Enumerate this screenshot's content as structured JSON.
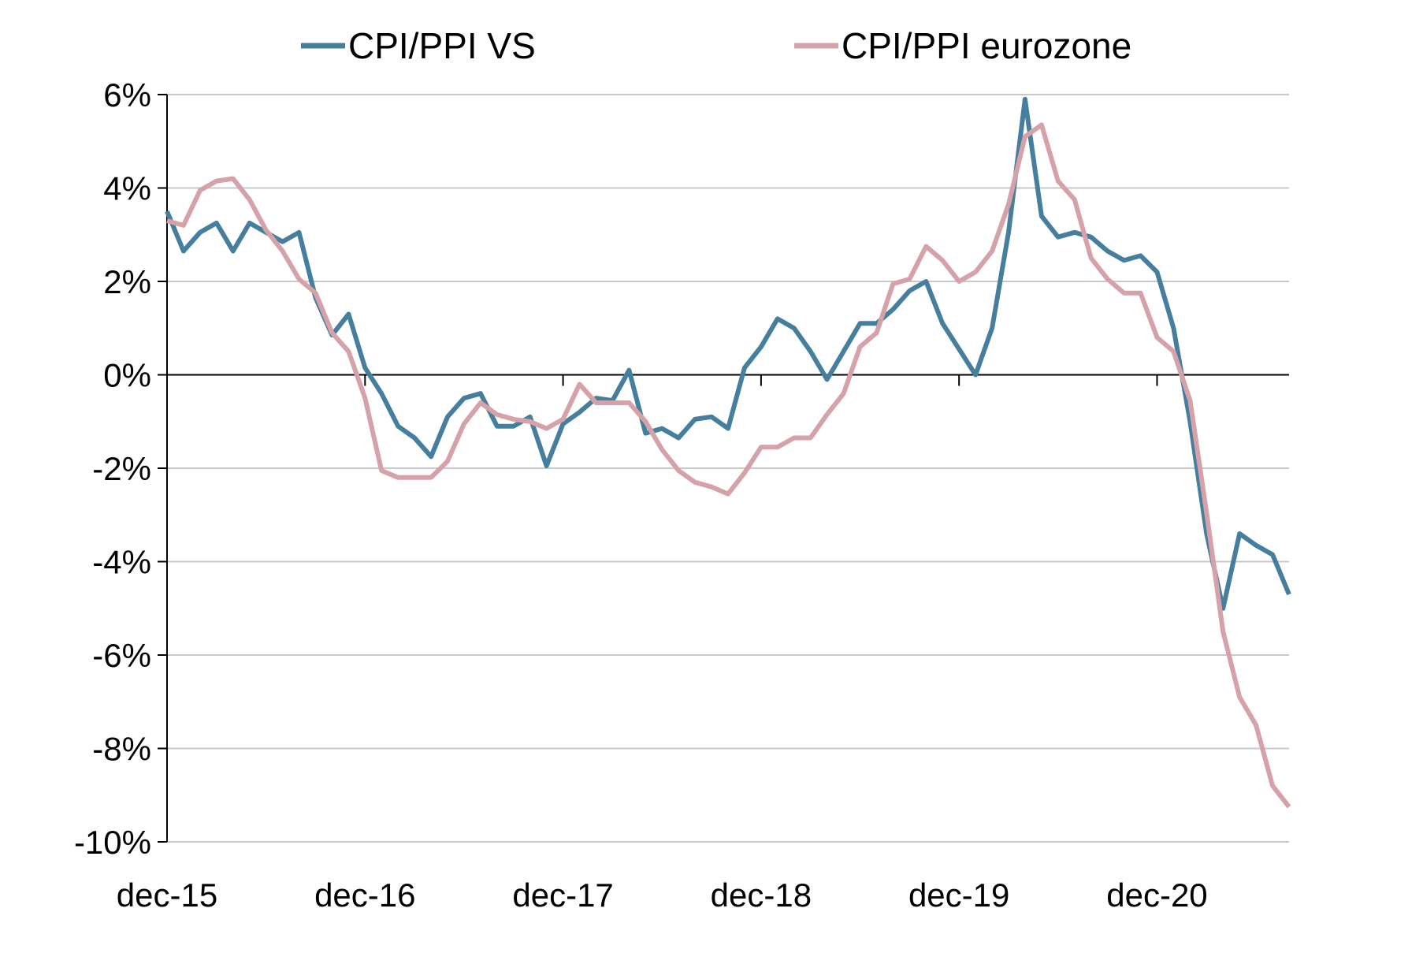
{
  "chart_data": {
    "type": "line",
    "title": "",
    "xlabel": "",
    "ylabel": "",
    "x_tick_labels": [
      "dec-15",
      "dec-16",
      "dec-17",
      "dec-18",
      "dec-19",
      "dec-20"
    ],
    "y_tick_labels": [
      "6%",
      "4%",
      "2%",
      "0%",
      "-2%",
      "-4%",
      "-6%",
      "-8%",
      "-10%"
    ],
    "ylim": [
      -10,
      6
    ],
    "y_ticks": [
      6,
      4,
      2,
      0,
      -2,
      -4,
      -6,
      -8,
      -10
    ],
    "x_range_months": [
      0,
      68
    ],
    "x_tick_months": [
      0,
      12,
      24,
      36,
      48,
      60
    ],
    "grid": true,
    "legend_position": "top",
    "series": [
      {
        "name": "CPI/PPI VS",
        "color": "#467f9e",
        "values": [
          3.5,
          2.65,
          3.05,
          3.25,
          2.65,
          3.25,
          3.05,
          2.85,
          3.05,
          1.65,
          0.85,
          1.3,
          0.15,
          -0.4,
          -1.1,
          -1.35,
          -1.75,
          -0.9,
          -0.5,
          -0.4,
          -1.1,
          -1.1,
          -0.9,
          -1.95,
          -1.05,
          -0.8,
          -0.5,
          -0.55,
          0.1,
          -1.25,
          -1.15,
          -1.35,
          -0.95,
          -0.9,
          -1.15,
          0.15,
          0.6,
          1.2,
          1.0,
          0.5,
          -0.1,
          0.5,
          1.1,
          1.1,
          1.4,
          1.8,
          2.0,
          1.1,
          0.55,
          0.0,
          1.0,
          3.05,
          5.9,
          3.4,
          2.95,
          3.05,
          2.95,
          2.65,
          2.45,
          2.55,
          2.2,
          1.0,
          -1.0,
          -3.4,
          -5.0,
          -3.4,
          -3.65,
          -3.85,
          -4.7
        ]
      },
      {
        "name": "CPI/PPI eurozone",
        "color": "#d4a2a8",
        "values": [
          3.3,
          3.2,
          3.95,
          4.15,
          4.2,
          3.75,
          3.1,
          2.65,
          2.05,
          1.75,
          0.9,
          0.5,
          -0.5,
          -2.05,
          -2.2,
          -2.2,
          -2.2,
          -1.85,
          -1.05,
          -0.6,
          -0.85,
          -0.95,
          -1.0,
          -1.15,
          -0.95,
          -0.2,
          -0.6,
          -0.6,
          -0.6,
          -1.0,
          -1.6,
          -2.05,
          -2.3,
          -2.4,
          -2.55,
          -2.1,
          -1.55,
          -1.55,
          -1.35,
          -1.35,
          -0.85,
          -0.4,
          0.6,
          0.9,
          1.95,
          2.05,
          2.75,
          2.45,
          2.0,
          2.2,
          2.65,
          3.65,
          5.1,
          5.35,
          4.15,
          3.75,
          2.5,
          2.05,
          1.75,
          1.75,
          0.8,
          0.5,
          -0.55,
          -2.95,
          -5.5,
          -6.9,
          -7.5,
          -8.8,
          -9.25
        ]
      }
    ]
  }
}
